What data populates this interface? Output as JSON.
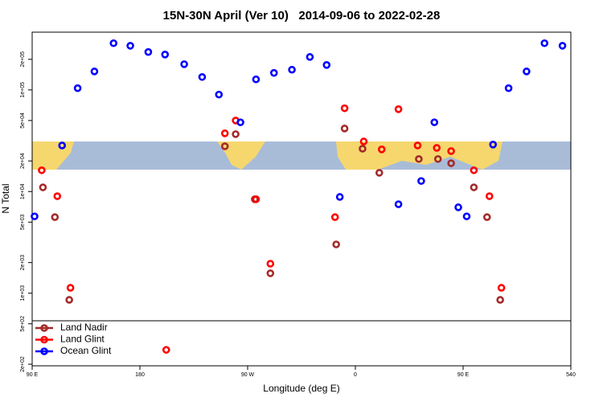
{
  "chart_data": {
    "type": "scatter",
    "title": "15N-30N April (Ver 10)   2014-09-06 to 2022-02-28",
    "x_label": "Longitude (deg E)",
    "y_label": "N Total",
    "xlim": [
      90,
      540
    ],
    "ylim": [
      193,
      370000
    ],
    "y_scale": "log",
    "legend": "bottom-left",
    "xticks": [
      {
        "value": 90,
        "label": "90 E"
      },
      180,
      {
        "value": 270,
        "label": "90 W"
      },
      0,
      {
        "value": 450,
        "label": "90 E"
      },
      540
    ],
    "yticks": [
      {
        "value": 200,
        "label": "2e+02"
      },
      {
        "value": 500,
        "label": "5e+02"
      },
      {
        "value": 1000,
        "label": "1e+03"
      },
      {
        "value": 2000,
        "label": "2e+03"
      },
      {
        "value": 5000,
        "label": "5e+03"
      },
      {
        "value": 10000,
        "label": "1e+04"
      },
      {
        "value": 20000,
        "label": "2e+04"
      },
      {
        "value": 50000,
        "label": "5e+04"
      },
      {
        "value": 100000,
        "label": "1e+05"
      },
      {
        "value": 200000,
        "label": "2e+05"
      }
    ],
    "series": [
      {
        "name": "Land Nadir",
        "color": "#a52a2a",
        "x": [
          99,
          109,
          121,
          251,
          260,
          276,
          289,
          344,
          351,
          366,
          380,
          413,
          429,
          440,
          459,
          470,
          481
        ],
        "values": [
          11000,
          5600,
          860,
          27900,
          36700,
          8400,
          1570,
          3020,
          41700,
          26400,
          15300,
          20900,
          20900,
          19000,
          11000,
          5600,
          860
        ]
      },
      {
        "name": "Land Glint",
        "color": "#ff0000",
        "x": [
          98,
          111,
          122,
          202,
          251,
          260,
          277,
          289,
          343,
          351,
          367,
          382,
          396,
          412,
          428,
          440,
          459,
          472,
          482
        ],
        "values": [
          16200,
          9000,
          1130,
          277,
          37400,
          50000,
          8400,
          1950,
          5600,
          66000,
          31100,
          26000,
          64600,
          28400,
          26900,
          25000,
          16200,
          9000,
          1130
        ]
      },
      {
        "name": "Ocean Glint",
        "color": "#0000ff",
        "x": [
          92,
          115,
          128,
          142,
          158,
          172,
          187,
          201,
          217,
          232,
          246,
          264,
          277,
          292,
          307,
          322,
          336,
          347,
          396,
          415,
          426,
          446,
          453,
          475,
          488,
          503,
          518,
          533
        ],
        "values": [
          5700,
          28400,
          104000,
          152000,
          288000,
          272000,
          236000,
          223000,
          179000,
          134000,
          90000,
          48000,
          127000,
          147000,
          158000,
          211000,
          176000,
          8850,
          7500,
          12700,
          48000,
          7000,
          5700,
          29000,
          104000,
          152000,
          288000,
          272000
        ]
      }
    ]
  }
}
